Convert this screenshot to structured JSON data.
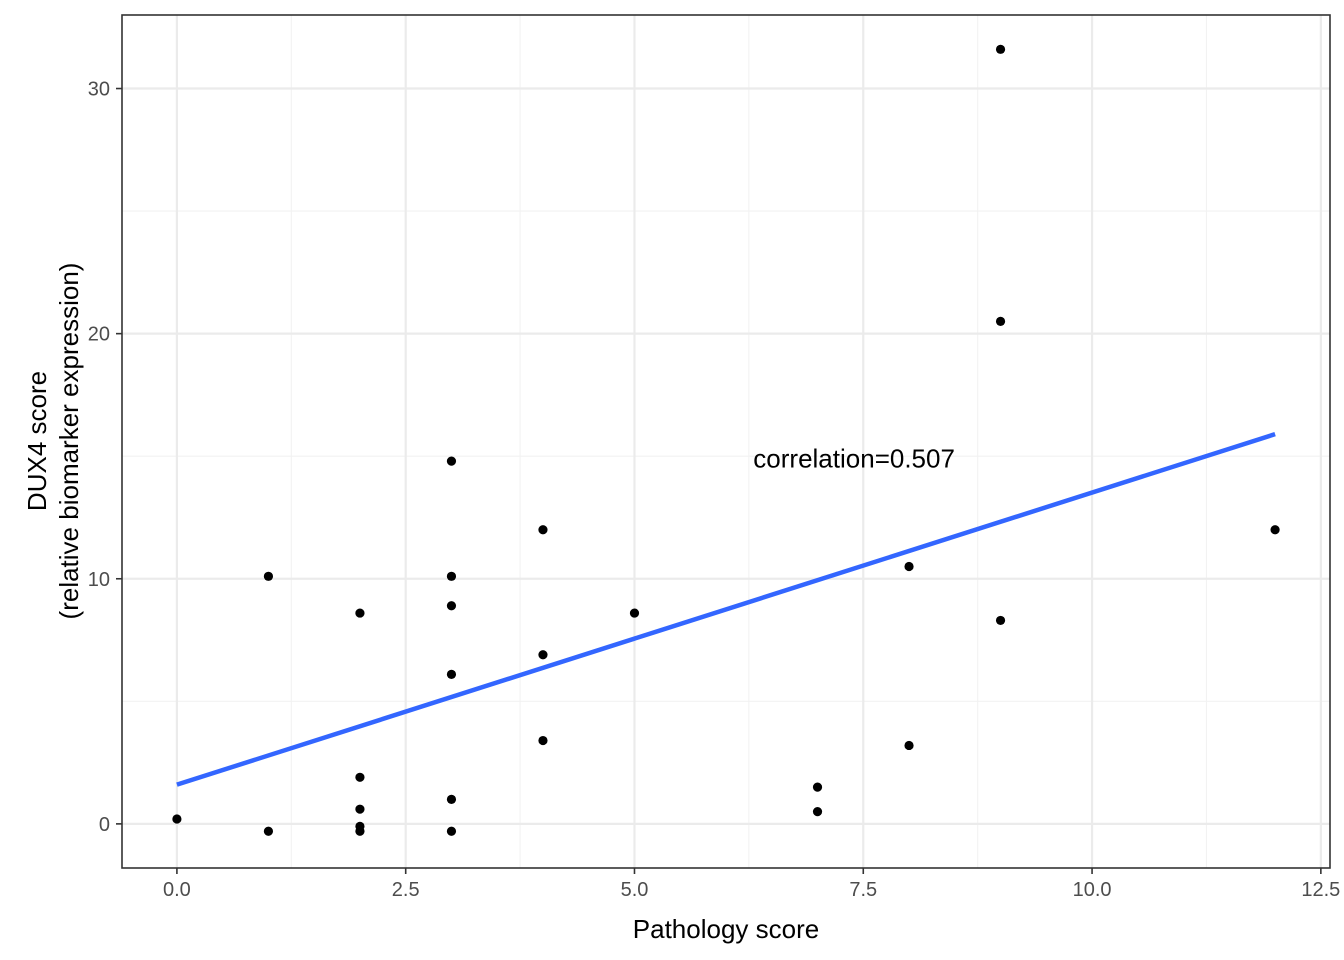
{
  "chart_data": {
    "type": "scatter",
    "title": "",
    "xlabel": "Pathology score",
    "ylabel_lines": [
      "DUX4 score",
      "(relative biomarker expression)"
    ],
    "xlim": [
      -0.6,
      12.6
    ],
    "ylim": [
      -1.8,
      33.0
    ],
    "x_ticks": [
      0.0,
      2.5,
      5.0,
      7.5,
      10.0,
      12.5
    ],
    "x_tick_labels": [
      "0.0",
      "2.5",
      "5.0",
      "7.5",
      "10.0",
      "12.5"
    ],
    "y_ticks": [
      0,
      10,
      20,
      30
    ],
    "y_tick_labels": [
      "0",
      "10",
      "20",
      "30"
    ],
    "grid": true,
    "points": [
      {
        "x": 0,
        "y": 0.2
      },
      {
        "x": 1,
        "y": 10.1
      },
      {
        "x": 1,
        "y": -0.3
      },
      {
        "x": 2,
        "y": 8.6
      },
      {
        "x": 2,
        "y": 1.9
      },
      {
        "x": 2,
        "y": 0.6
      },
      {
        "x": 2,
        "y": -0.1
      },
      {
        "x": 2,
        "y": -0.3
      },
      {
        "x": 3,
        "y": 14.8
      },
      {
        "x": 3,
        "y": 10.1
      },
      {
        "x": 3,
        "y": 8.9
      },
      {
        "x": 3,
        "y": 6.1
      },
      {
        "x": 3,
        "y": 1.0
      },
      {
        "x": 3,
        "y": -0.3
      },
      {
        "x": 4,
        "y": 12.0
      },
      {
        "x": 4,
        "y": 6.9
      },
      {
        "x": 4,
        "y": 3.4
      },
      {
        "x": 5,
        "y": 8.6
      },
      {
        "x": 7,
        "y": 1.5
      },
      {
        "x": 7,
        "y": 0.5
      },
      {
        "x": 8,
        "y": 10.5
      },
      {
        "x": 8,
        "y": 3.2
      },
      {
        "x": 9,
        "y": 31.6
      },
      {
        "x": 9,
        "y": 20.5
      },
      {
        "x": 9,
        "y": 8.3
      },
      {
        "x": 12,
        "y": 12.0
      }
    ],
    "fit_line": {
      "x": [
        0,
        12
      ],
      "y": [
        1.6,
        15.9
      ],
      "color": "#3366ff"
    },
    "point_color": "#000000",
    "annotation": {
      "text": "correlation=0.507",
      "x": 7.4,
      "y": 14.9
    }
  }
}
